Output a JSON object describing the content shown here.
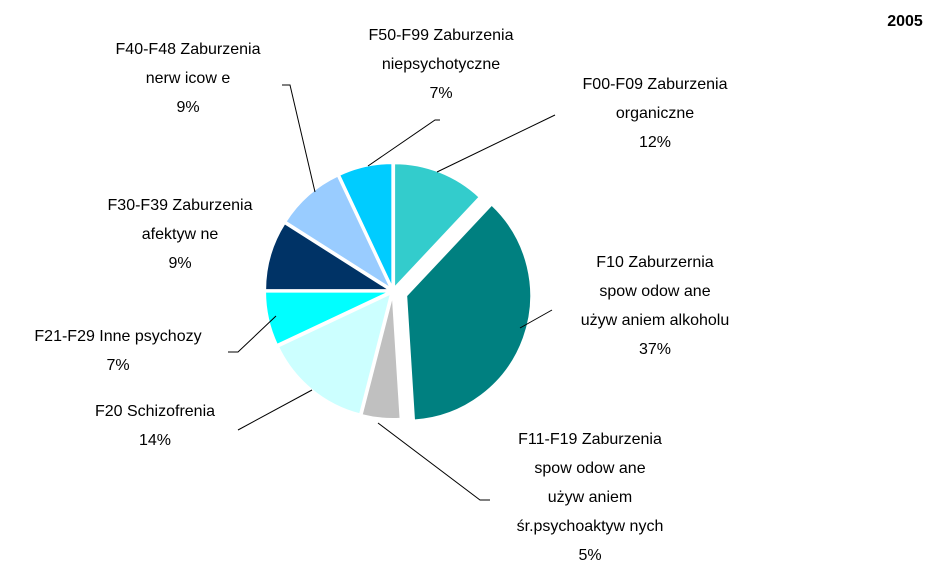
{
  "chart_data": {
    "type": "pie",
    "title": "2005",
    "categories": [
      [
        "F00-F09 Zaburzenia",
        "organiczne"
      ],
      [
        "F10 Zaburzernia",
        "spow odow ane",
        "używ aniem alkoholu"
      ],
      [
        "F11-F19 Zaburzenia",
        "spow odow ane",
        "używ aniem",
        "śr.psychoaktyw nych"
      ],
      [
        "F20 Schizofrenia"
      ],
      [
        "F21-F29 Inne psychozy"
      ],
      [
        "F30-F39 Zaburzenia",
        "afektyw ne"
      ],
      [
        "F40-F48 Zaburzenia",
        "nerw icow e"
      ],
      [
        "F50-F99 Zaburzenia",
        "niepsychotyczne"
      ]
    ],
    "values": [
      12,
      37,
      5,
      14,
      7,
      9,
      9,
      7
    ],
    "value_labels": [
      "12%",
      "37%",
      "5%",
      "14%",
      "7%",
      "9%",
      "9%",
      "7%"
    ],
    "colors": [
      "#33cccc",
      "#008080",
      "#c0c0c0",
      "#ccffff",
      "#00ffff",
      "#003366",
      "#99ccff",
      "#00ccff"
    ]
  }
}
